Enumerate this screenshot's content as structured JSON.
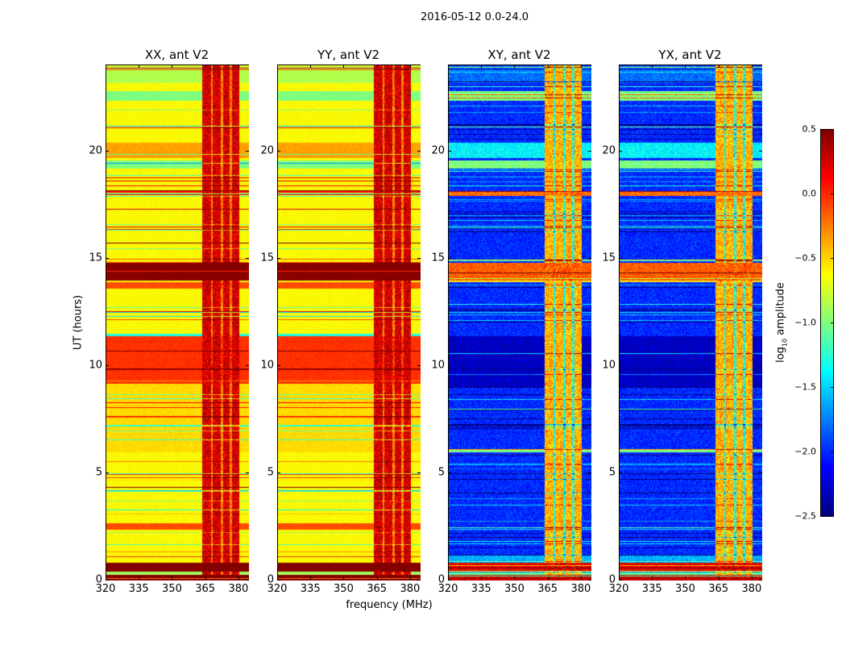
{
  "chart_data": {
    "type": "heatmap",
    "title": "2016-05-12 0.0-24.0",
    "xlabel": "frequency (MHz)",
    "ylabel": "UT (hours)",
    "xlim": [
      320,
      384.4
    ],
    "ylim": [
      0,
      24
    ],
    "xticks": [
      320,
      335,
      350,
      365,
      380
    ],
    "yticks": [
      0,
      5,
      10,
      15,
      20
    ],
    "panels": [
      {
        "title": "XX, ant V2",
        "model": "parallel"
      },
      {
        "title": "YY, ant V2",
        "model": "parallel"
      },
      {
        "title": "XY, ant V2",
        "model": "cross"
      },
      {
        "title": "YX, ant V2",
        "model": "cross"
      }
    ],
    "colorbar": {
      "label_prefix": "log",
      "label_sub": "10",
      "label_suffix": " amplitude",
      "colormap": "jet",
      "range": [
        -2.5,
        0.5
      ],
      "ticks": [
        0.5,
        0.0,
        -0.5,
        -1.0,
        -1.5,
        -2.0,
        -2.5
      ],
      "tick_labels": [
        "0.5",
        "0.0",
        "−0.5",
        "−1.0",
        "−1.5",
        "−2.0",
        "−2.5"
      ]
    },
    "models": {
      "parallel": {
        "background": -0.62,
        "rfi_blocks": [
          [
            363,
            367
          ],
          [
            368,
            371.5
          ],
          [
            372.5,
            375.5
          ],
          [
            376.5,
            380
          ]
        ],
        "rfi_block_value": 0.25,
        "rfi_gap_value": -0.25,
        "bands": [
          [
            0,
            0.3,
            0.5
          ],
          [
            0.3,
            0.45,
            -0.9
          ],
          [
            0.45,
            0.85,
            0.5
          ],
          [
            2.4,
            2.7,
            -0.1
          ],
          [
            6.0,
            9.2,
            -0.52
          ],
          [
            9.2,
            11.4,
            -0.02
          ],
          [
            11.4,
            11.5,
            -1.3
          ],
          [
            13.6,
            13.9,
            -0.1
          ],
          [
            14.0,
            14.8,
            0.48
          ],
          [
            18.1,
            18.2,
            0.1
          ],
          [
            19.2,
            19.6,
            -1.0
          ],
          [
            19.7,
            20.4,
            -0.35
          ],
          [
            22.35,
            22.8,
            -1.0
          ],
          [
            23.2,
            24,
            -0.85
          ]
        ]
      },
      "cross": {
        "background": -2.0,
        "rfi_blocks": [
          [
            363,
            367
          ],
          [
            368,
            371.5
          ],
          [
            372.5,
            375.5
          ],
          [
            376.5,
            380
          ]
        ],
        "rfi_block_value": -0.4,
        "rfi_gap_value": -1.3,
        "bands": [
          [
            0,
            0.3,
            0.3
          ],
          [
            0.3,
            0.45,
            -1.1
          ],
          [
            0.45,
            0.85,
            0.2
          ],
          [
            0.85,
            1.2,
            -1.6
          ],
          [
            6.0,
            6.15,
            -1.0
          ],
          [
            9.0,
            11.4,
            -2.3
          ],
          [
            13.9,
            14.0,
            -0.6
          ],
          [
            14.0,
            14.8,
            -0.15
          ],
          [
            17.95,
            18.15,
            -0.2
          ],
          [
            19.2,
            19.6,
            -1.0
          ],
          [
            19.7,
            20.4,
            -1.4
          ],
          [
            22.35,
            22.8,
            -1.0
          ],
          [
            23.2,
            24,
            -1.8
          ]
        ]
      }
    }
  }
}
